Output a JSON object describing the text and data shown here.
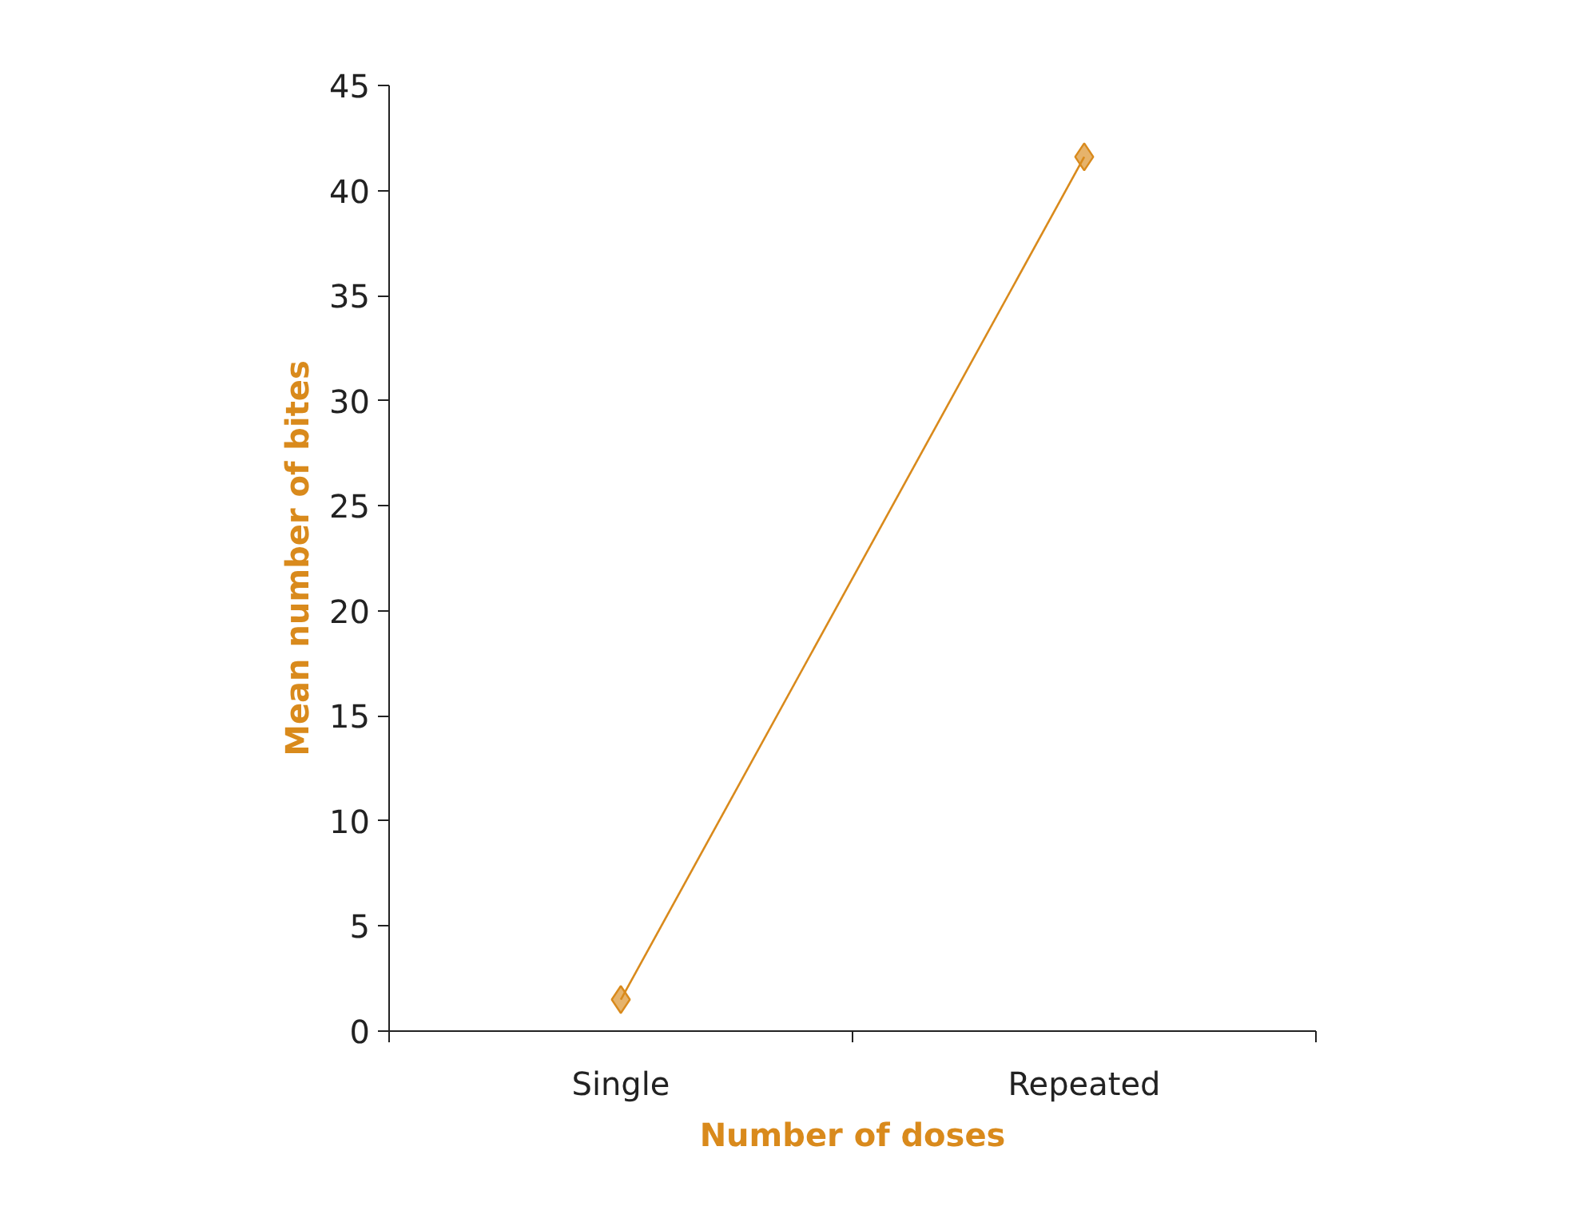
{
  "chart_data": {
    "type": "line",
    "xlabel": "Number of doses",
    "ylabel": "Mean number of bites",
    "categories": [
      "Single",
      "Repeated"
    ],
    "series": [
      {
        "color": "#d98a1c",
        "values": [
          1.5,
          41.6
        ]
      }
    ],
    "ylim": [
      0,
      45
    ],
    "yticks": [
      0,
      5,
      10,
      15,
      20,
      25,
      30,
      35,
      40,
      45
    ],
    "grid": false,
    "marker": "diamond",
    "line_style": "solid"
  }
}
